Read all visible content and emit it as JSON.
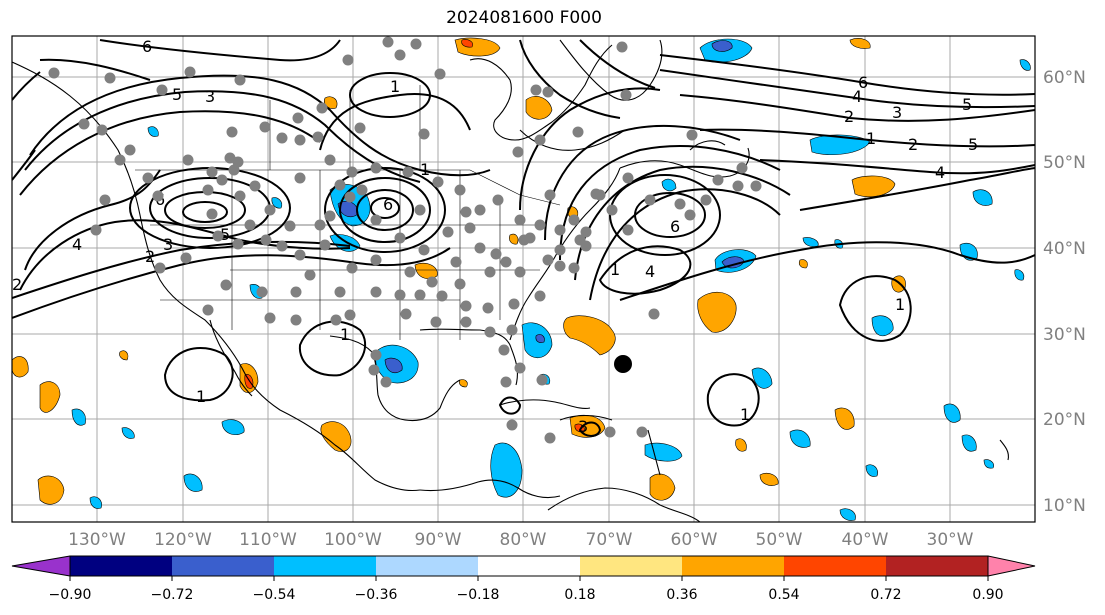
{
  "title": "2024081600 F000",
  "latitude_labels": [
    "60°N",
    "50°N",
    "40°N",
    "30°N",
    "20°N",
    "10°N"
  ],
  "longitude_labels": [
    "130°W",
    "120°W",
    "110°W",
    "100°W",
    "90°W",
    "80°W",
    "70°W",
    "60°W",
    "50°W",
    "40°W",
    "30°W"
  ],
  "colorbar": {
    "tick_labels": [
      "−0.90",
      "−0.72",
      "−0.54",
      "−0.36",
      "−0.18",
      "0.18",
      "0.36",
      "0.54",
      "0.72",
      "0.90"
    ],
    "colors": [
      "#9932cc",
      "#000080",
      "#3a5fcd",
      "#00bfff",
      "#add8ff",
      "#ffffff",
      "#ffe680",
      "#ffa500",
      "#ff4500",
      "#b22222",
      "#ff82ab"
    ]
  },
  "contour_labels": [
    "6",
    "5",
    "3",
    "4",
    "2",
    "1",
    "6",
    "3",
    "5",
    "2",
    "1",
    "4",
    "3",
    "2",
    "1",
    "5",
    "4",
    "6",
    "6",
    "2",
    "3",
    "5",
    "6",
    "1",
    "1",
    "4",
    "1",
    "1",
    "1"
  ],
  "colors": {
    "positive_fill": "#ffa500",
    "negative_fill": "#00bfff",
    "deep_negative_fill": "#3a5fcd",
    "strong_positive_fill": "#ff4500",
    "station_dot": "#808080",
    "storm_marker": "#000000",
    "contour": "#000000",
    "grid": "#a9a9a9"
  },
  "storm_marker_name": "tropical-cyclone-center"
}
